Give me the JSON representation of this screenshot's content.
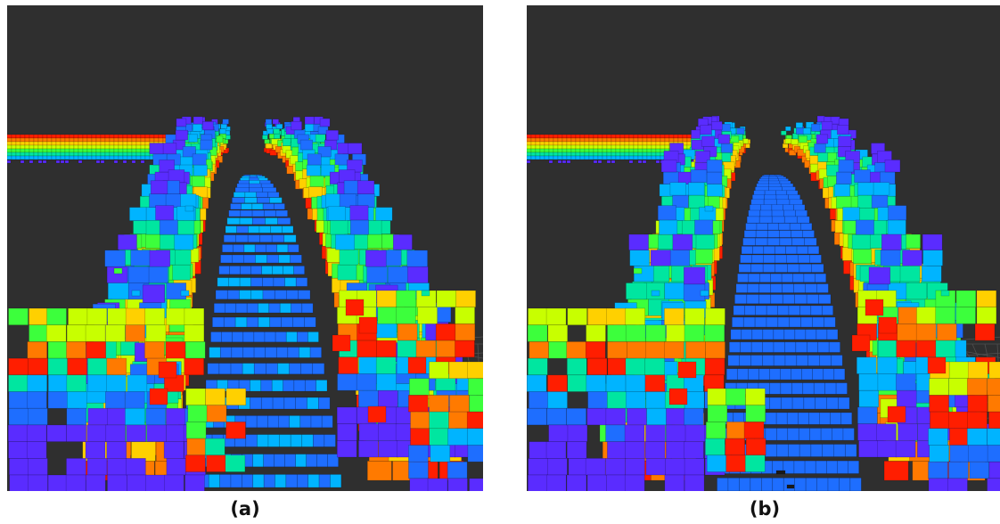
{
  "panels": [
    {
      "label": "(a)"
    },
    {
      "label": "(b)"
    }
  ],
  "colors": {
    "background": "#2f2f2f",
    "scale": [
      "#ff1e00",
      "#ff7a00",
      "#ffd000",
      "#c8ff00",
      "#3cff3c",
      "#00e6a0",
      "#00b4ff",
      "#1e6eff",
      "#5a2cff"
    ]
  }
}
